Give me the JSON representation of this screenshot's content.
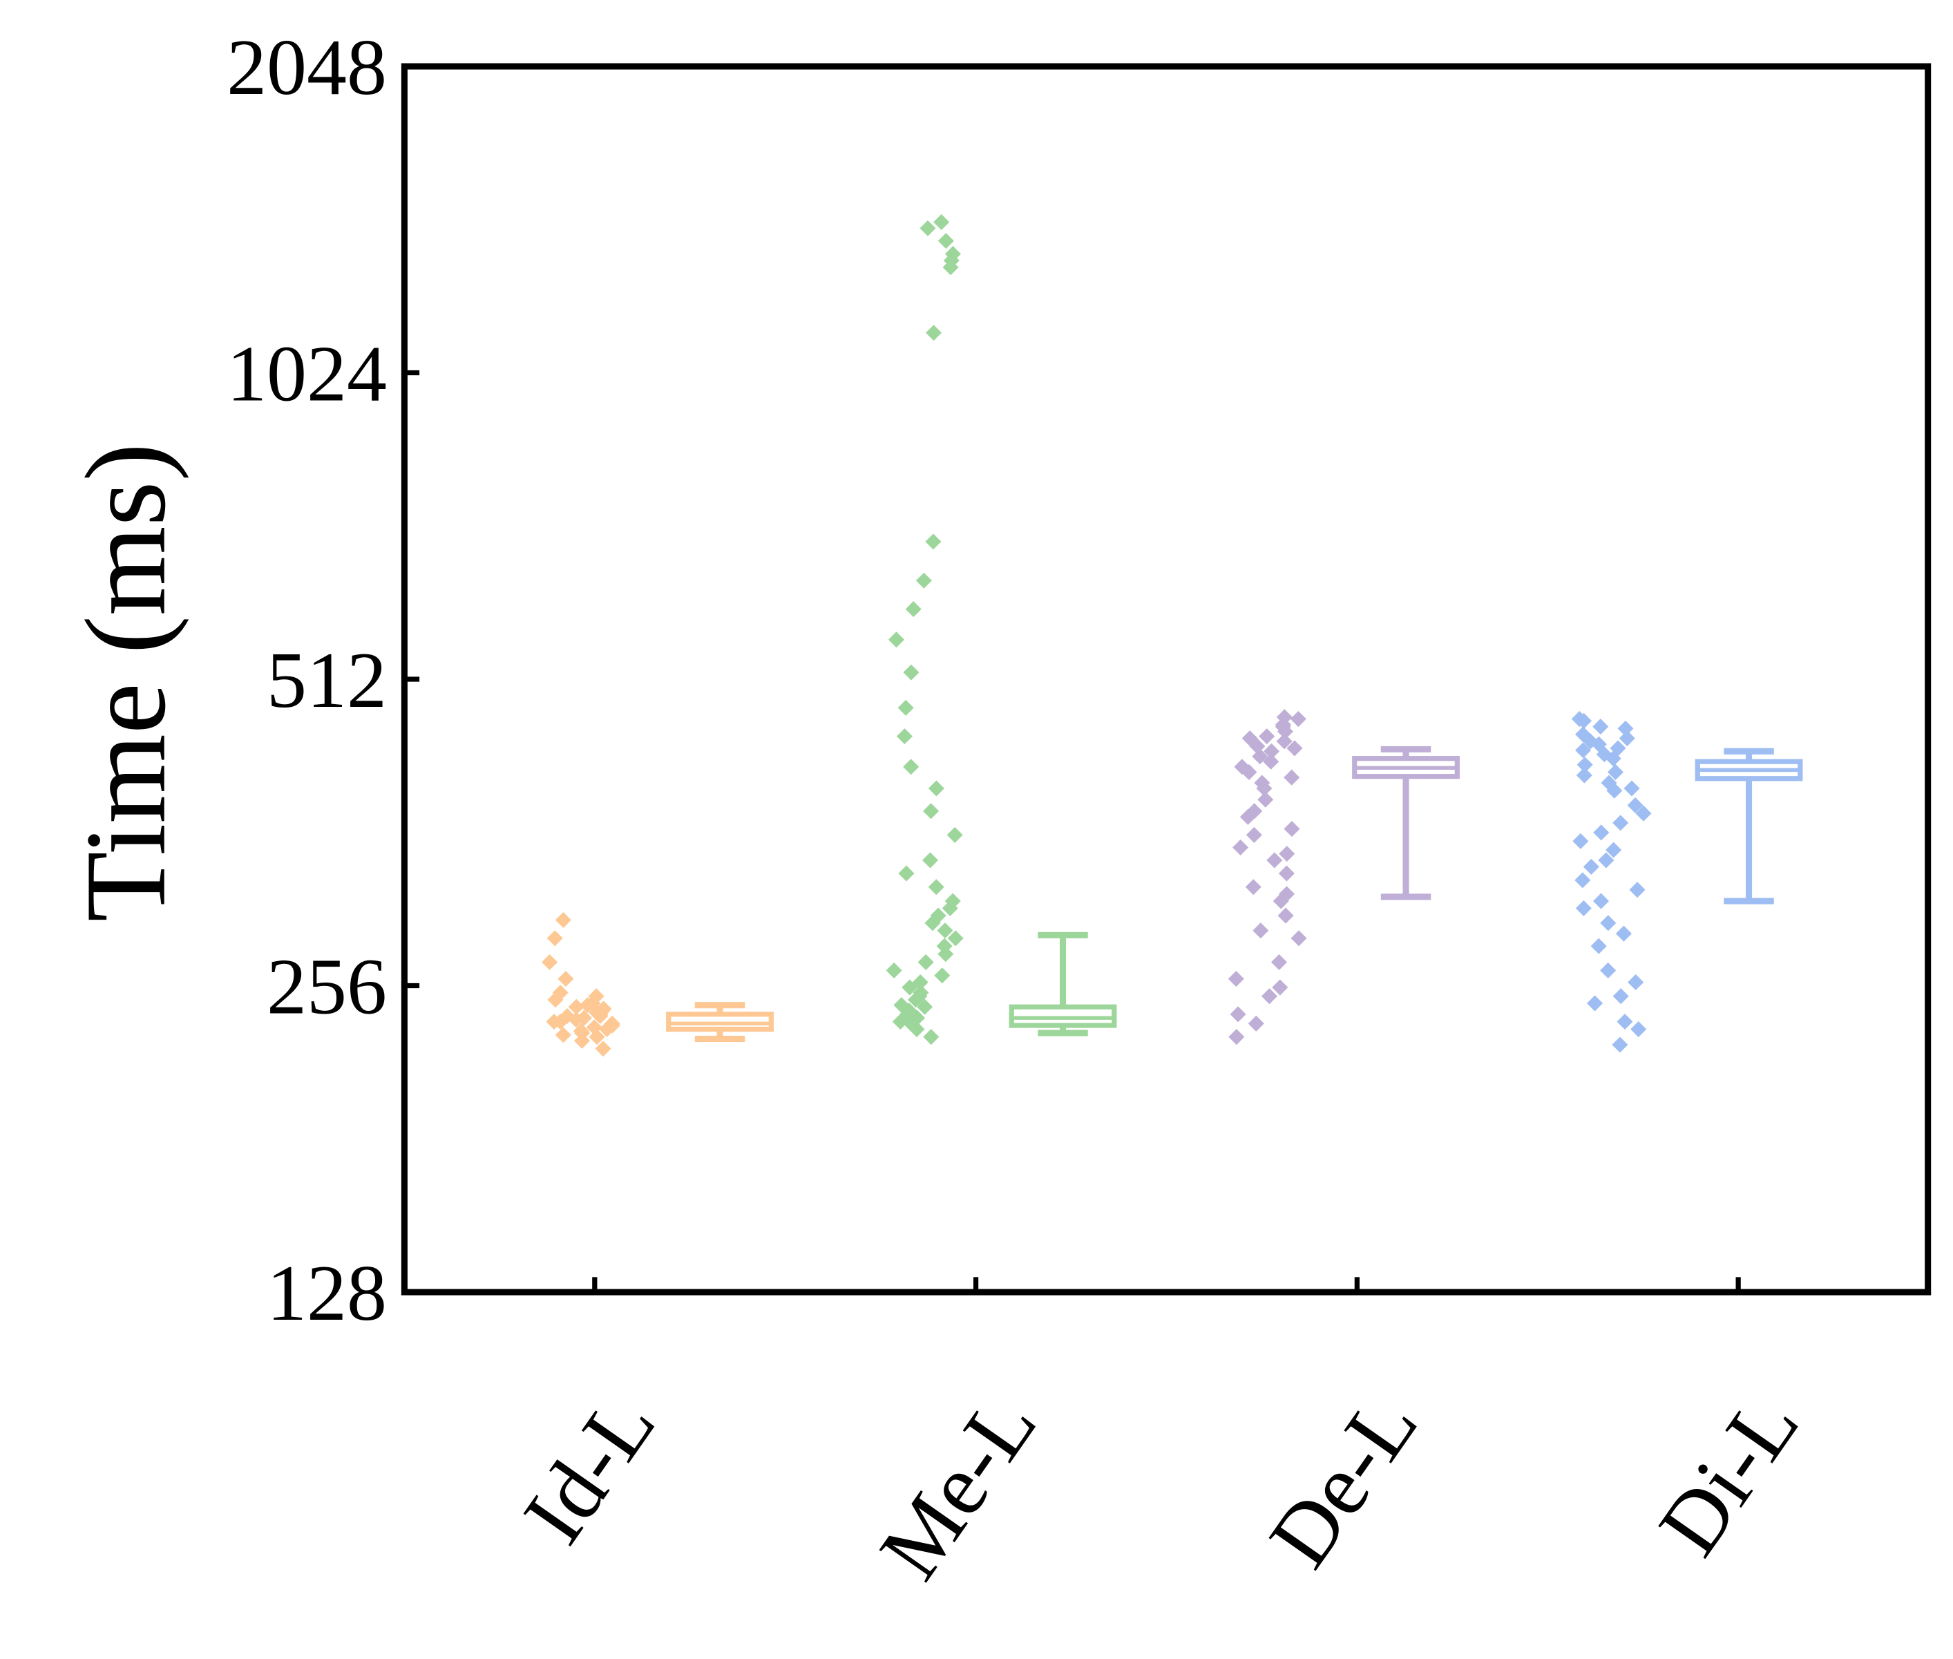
{
  "chart_data": {
    "type": "box-scatter",
    "y_label": "Time (ms)",
    "log_base": 2,
    "ylim": [
      128,
      2048
    ],
    "yticks": [
      128,
      256,
      512,
      1024,
      2048
    ],
    "categories": [
      "Id-L",
      "Me-L",
      "De-L",
      "Di-L"
    ],
    "series": [
      {
        "color": "#fdc893",
        "values": [
          230,
          235,
          238,
          240,
          233,
          228,
          242,
          245,
          236,
          239,
          231,
          244,
          248,
          226,
          237,
          241,
          234,
          250,
          222,
          246,
          232,
          239,
          243,
          229,
          236,
          252,
          260,
          270,
          285,
          297
        ],
        "box": {
          "min": 227,
          "q1": 232,
          "median": 235,
          "q3": 240,
          "max": 245
        }
      },
      {
        "color": "#9dd69b",
        "values": [
          228,
          232,
          235,
          240,
          245,
          250,
          238,
          242,
          255,
          262,
          270,
          280,
          290,
          300,
          310,
          320,
          330,
          236,
          244,
          248,
          252,
          258,
          265,
          275,
          285,
          295,
          305,
          340,
          360,
          380,
          400,
          420,
          450,
          480,
          520,
          560,
          600,
          640,
          699,
          1121,
          1300,
          1340,
          1380,
          1420,
          1440,
          1320
        ],
        "box": {
          "min": 230,
          "q1": 234,
          "median": 238,
          "q3": 244,
          "max": 287
        }
      },
      {
        "color": "#bfaed6",
        "values": [
          228,
          240,
          255,
          270,
          285,
          300,
          315,
          330,
          345,
          360,
          375,
          390,
          405,
          420,
          430,
          440,
          450,
          460,
          468,
          470,
          455,
          445,
          435,
          425,
          415,
          400,
          380,
          350,
          320,
          290,
          260,
          235,
          250,
          310,
          340,
          365,
          410,
          438,
          462,
          448
        ],
        "box": {
          "min": 313,
          "q1": 411,
          "median": 419,
          "q3": 428,
          "max": 437
        }
      },
      {
        "color": "#9ebdf2",
        "values": [
          224,
          236,
          250,
          265,
          280,
          295,
          310,
          325,
          340,
          355,
          370,
          385,
          400,
          415,
          428,
          438,
          448,
          458,
          466,
          468,
          452,
          442,
          432,
          422,
          412,
          398,
          378,
          348,
          318,
          288,
          258,
          232,
          246,
          305,
          335,
          362,
          405,
          436,
          460,
          445
        ],
        "box": {
          "min": 310,
          "q1": 409,
          "median": 417,
          "q3": 425,
          "max": 435
        }
      }
    ]
  }
}
